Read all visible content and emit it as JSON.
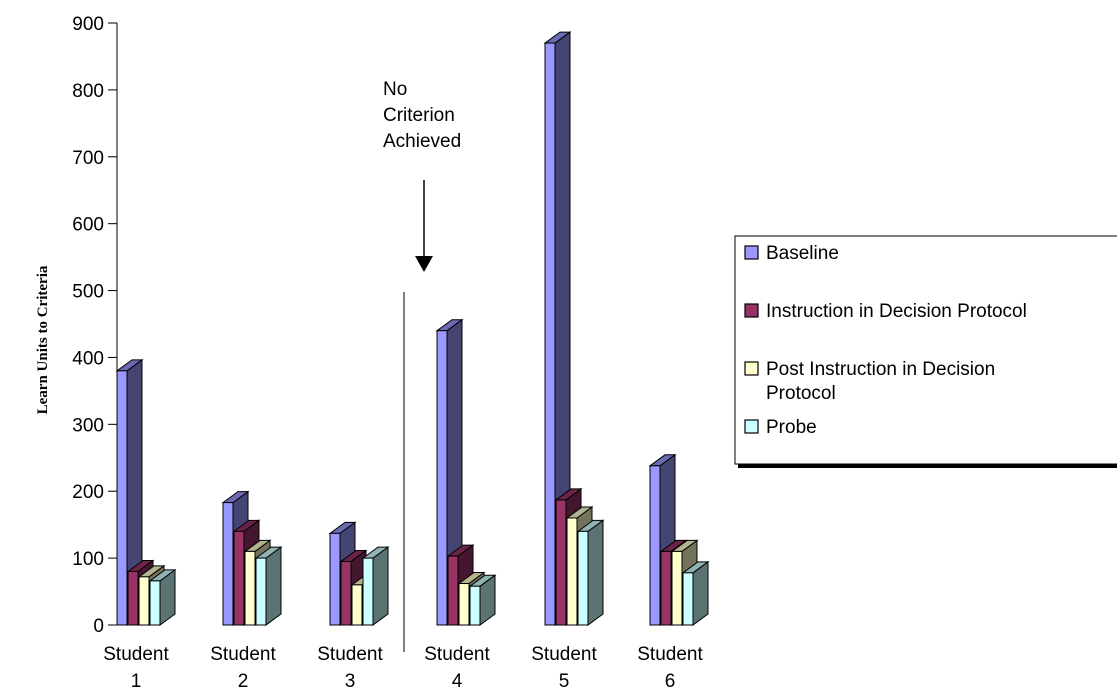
{
  "chart_data": {
    "type": "bar",
    "ylabel": "Learn Units to Criteria",
    "xlabel": "",
    "ylim": [
      0,
      900
    ],
    "yticks": [
      0,
      100,
      200,
      300,
      400,
      500,
      600,
      700,
      800,
      900
    ],
    "categories": [
      [
        "Student",
        "1"
      ],
      [
        "Student",
        "2"
      ],
      [
        "Student",
        "3"
      ],
      [
        "Student",
        "4"
      ],
      [
        "Student",
        "5"
      ],
      [
        "Student",
        "6"
      ]
    ],
    "series": [
      {
        "name": "Baseline",
        "values": [
          380,
          183,
          137,
          440,
          870,
          238
        ],
        "color": "#9999ff"
      },
      {
        "name": "Instruction in Decision Protocol",
        "values": [
          80,
          140,
          95,
          103,
          187,
          110
        ],
        "color": "#993366"
      },
      {
        "name": "Post Instruction in Decision Protocol",
        "legend_lines": [
          "Post Instruction in Decision",
          "Protocol"
        ],
        "values": [
          72,
          110,
          60,
          62,
          160,
          110
        ],
        "color": "#ffffcc"
      },
      {
        "name": "Probe",
        "values": [
          66,
          100,
          100,
          58,
          140,
          78
        ],
        "color": "#ccffff"
      }
    ],
    "legend": {
      "placement": "right"
    },
    "annotation": {
      "lines": [
        "No",
        "Criterion",
        "Achieved"
      ],
      "arrow": "down"
    },
    "divider_between": [
      "Student 3",
      "Student 4"
    ],
    "grid": false
  }
}
